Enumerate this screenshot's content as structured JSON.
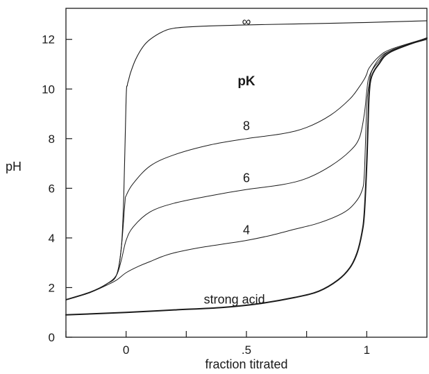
{
  "chart_data": {
    "type": "line",
    "title": "",
    "xlabel": "fraction titrated",
    "ylabel": "pH",
    "xlim": [
      -0.25,
      1.25
    ],
    "ylim": [
      0,
      13.25
    ],
    "grid": false,
    "x_ticks": [
      {
        "value": 0,
        "label": "0"
      },
      {
        "value": 0.5,
        "label": ".5"
      },
      {
        "value": 1,
        "label": "1"
      }
    ],
    "x_minor_ticks": [
      -0.25,
      0.25,
      0.75
    ],
    "y_ticks": [
      {
        "value": 0,
        "label": "0"
      },
      {
        "value": 2,
        "label": "2"
      },
      {
        "value": 4,
        "label": "4"
      },
      {
        "value": 6,
        "label": "6"
      },
      {
        "value": 8,
        "label": "8"
      },
      {
        "value": 10,
        "label": "10"
      },
      {
        "value": 12,
        "label": "12"
      }
    ],
    "annotations": [
      {
        "text": "pK",
        "x": 0.5,
        "y": 10.15,
        "bold": true
      },
      {
        "text": "∞",
        "x": 0.5,
        "y": 12.55
      },
      {
        "text": "8",
        "x": 0.5,
        "y": 8.35
      },
      {
        "text": "6",
        "x": 0.5,
        "y": 6.25
      },
      {
        "text": "4",
        "x": 0.5,
        "y": 4.15
      },
      {
        "text": "strong acid",
        "x": 0.45,
        "y": 1.35
      }
    ],
    "series": [
      {
        "label": "∞",
        "width": 1.1,
        "x": [
          -0.25,
          -0.15,
          -0.08,
          -0.04,
          -0.02,
          -0.01,
          0.0,
          0.005,
          0.01,
          0.02,
          0.04,
          0.07,
          0.1,
          0.15,
          0.2,
          0.3,
          0.5,
          0.7,
          1.0,
          1.25
        ],
        "y": [
          1.52,
          1.82,
          2.15,
          2.5,
          3.6,
          5.6,
          9.6,
          10.15,
          10.35,
          10.7,
          11.2,
          11.7,
          12.0,
          12.3,
          12.45,
          12.52,
          12.58,
          12.62,
          12.68,
          12.75
        ]
      },
      {
        "label": "8",
        "width": 1.0,
        "x": [
          -0.25,
          -0.15,
          -0.08,
          -0.04,
          -0.02,
          -0.005,
          0.0,
          0.03,
          0.1,
          0.2,
          0.35,
          0.5,
          0.65,
          0.75,
          0.85,
          0.93,
          0.97,
          0.99,
          1.0,
          1.01,
          1.05,
          1.1,
          1.25
        ],
        "y": [
          1.5,
          1.8,
          2.15,
          2.5,
          3.6,
          5.4,
          5.7,
          6.2,
          6.9,
          7.35,
          7.75,
          8.0,
          8.2,
          8.45,
          8.95,
          9.6,
          10.1,
          10.4,
          10.6,
          10.85,
          11.3,
          11.6,
          12.05
        ]
      },
      {
        "label": "6",
        "width": 1.0,
        "x": [
          -0.25,
          -0.15,
          -0.08,
          -0.04,
          -0.02,
          0.0,
          0.03,
          0.1,
          0.2,
          0.35,
          0.5,
          0.65,
          0.75,
          0.85,
          0.93,
          0.97,
          0.99,
          1.0,
          1.01,
          1.05,
          1.1,
          1.25
        ],
        "y": [
          1.5,
          1.8,
          2.15,
          2.5,
          3.1,
          3.9,
          4.45,
          5.05,
          5.4,
          5.7,
          5.95,
          6.15,
          6.4,
          6.9,
          7.5,
          8.05,
          9.0,
          9.9,
          10.5,
          11.2,
          11.55,
          12.05
        ]
      },
      {
        "label": "4",
        "width": 1.0,
        "x": [
          -0.25,
          -0.15,
          -0.08,
          -0.04,
          0.0,
          0.05,
          0.1,
          0.15,
          0.2,
          0.3,
          0.4,
          0.5,
          0.6,
          0.7,
          0.8,
          0.9,
          0.95,
          0.98,
          0.99,
          1.0,
          1.01,
          1.02,
          1.05,
          1.1,
          1.25
        ],
        "y": [
          1.5,
          1.8,
          2.1,
          2.3,
          2.6,
          2.85,
          3.05,
          3.25,
          3.4,
          3.6,
          3.75,
          3.9,
          4.1,
          4.35,
          4.6,
          5.0,
          5.4,
          5.9,
          6.6,
          9.3,
          10.2,
          10.7,
          11.1,
          11.55,
          12.0
        ]
      },
      {
        "label": "strong acid",
        "width": 2.0,
        "x": [
          -0.25,
          0.0,
          0.2,
          0.4,
          0.55,
          0.7,
          0.8,
          0.88,
          0.93,
          0.96,
          0.98,
          0.99,
          1.0,
          1.005,
          1.01,
          1.02,
          1.05,
          1.1,
          1.25
        ],
        "y": [
          0.9,
          1.0,
          1.1,
          1.2,
          1.35,
          1.6,
          1.85,
          2.3,
          2.8,
          3.4,
          4.2,
          5.0,
          7.0,
          8.5,
          9.8,
          10.5,
          11.0,
          11.5,
          12.05
        ]
      }
    ]
  }
}
